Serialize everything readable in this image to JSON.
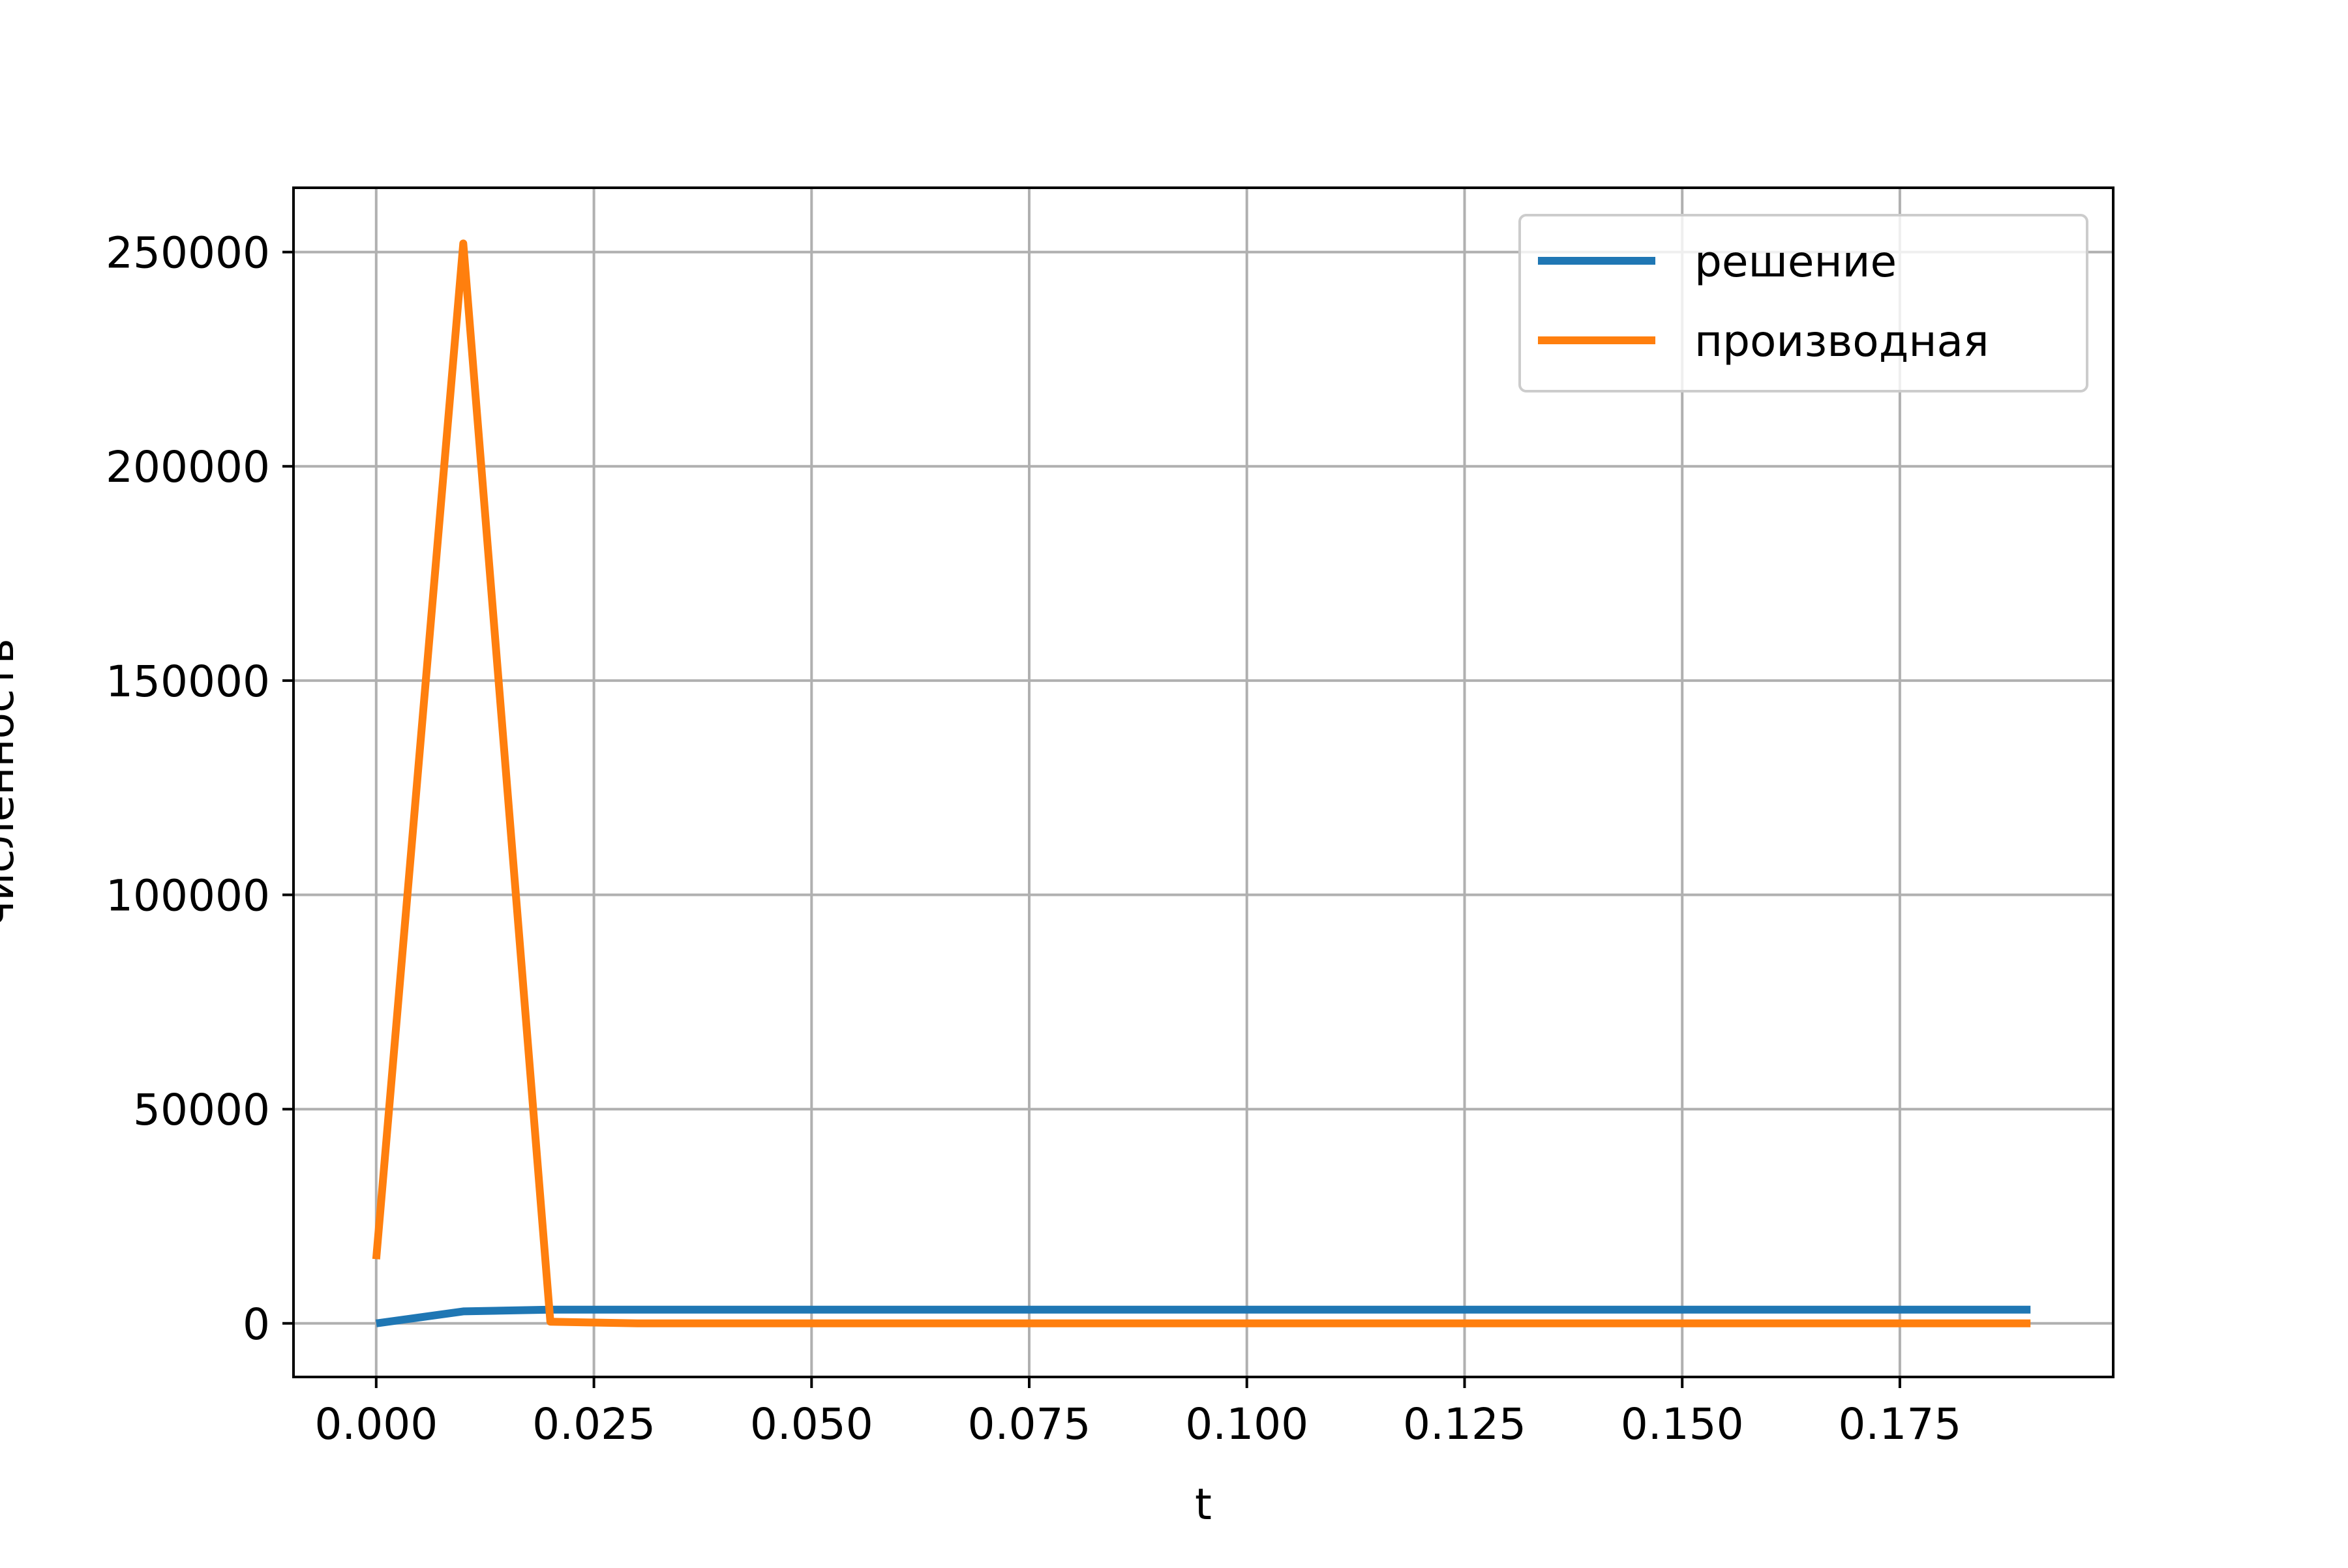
{
  "chart_data": {
    "type": "line",
    "title": "",
    "xlabel": "t",
    "ylabel": "численность",
    "xlim": [
      -0.0095,
      0.1995
    ],
    "ylim": [
      -12500,
      265000
    ],
    "xticks": [
      0.0,
      0.025,
      0.05,
      0.075,
      0.1,
      0.125,
      0.15,
      0.175
    ],
    "xtick_labels": [
      "0.000",
      "0.025",
      "0.050",
      "0.075",
      "0.100",
      "0.125",
      "0.150",
      "0.175"
    ],
    "yticks": [
      0,
      50000,
      100000,
      150000,
      200000,
      250000
    ],
    "ytick_labels": [
      "0",
      "50000",
      "100000",
      "150000",
      "200000",
      "250000"
    ],
    "grid": true,
    "legend_position": "upper right",
    "x": [
      0.0,
      0.01,
      0.02,
      0.03,
      0.04,
      0.05,
      0.06,
      0.07,
      0.08,
      0.09,
      0.1,
      0.11,
      0.12,
      0.13,
      0.14,
      0.15,
      0.16,
      0.17,
      0.18,
      0.19
    ],
    "series": [
      {
        "name": "решение",
        "color": "#1f77b4",
        "values": [
          0,
          2800,
          3200,
          3200,
          3200,
          3200,
          3200,
          3200,
          3200,
          3200,
          3200,
          3200,
          3200,
          3200,
          3200,
          3200,
          3200,
          3200,
          3200,
          3200
        ]
      },
      {
        "name": "производная",
        "color": "#ff7f0e",
        "values": [
          15000,
          252000,
          400,
          0,
          0,
          0,
          0,
          0,
          0,
          0,
          0,
          0,
          0,
          0,
          0,
          0,
          0,
          0,
          0,
          0
        ]
      }
    ]
  }
}
